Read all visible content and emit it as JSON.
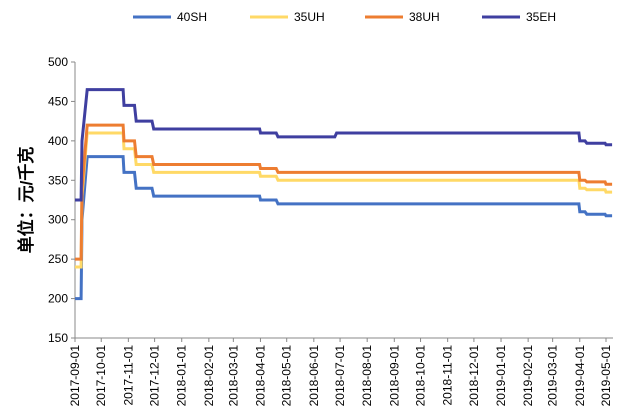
{
  "chart_data": {
    "type": "line",
    "ylabel": "单位：元/千克",
    "ylim": [
      150,
      500
    ],
    "yticks": [
      150,
      200,
      250,
      300,
      350,
      400,
      450,
      500
    ],
    "xticks": [
      "2017-09-01",
      "2017-10-01",
      "2017-11-01",
      "2017-12-01",
      "2018-01-01",
      "2018-02-01",
      "2018-03-01",
      "2018-04-01",
      "2018-05-01",
      "2018-06-01",
      "2018-07-01",
      "2018-08-01",
      "2018-09-01",
      "2018-10-01",
      "2018-11-01",
      "2018-12-01",
      "2019-01-01",
      "2019-02-01",
      "2019-03-01",
      "2019-04-01",
      "2019-05-01"
    ],
    "legend_position": "top",
    "series": [
      {
        "name": "40SH",
        "color": "#4472C4",
        "points": [
          [
            "2017-09-01",
            200
          ],
          [
            "2017-09-08",
            200
          ],
          [
            "2017-09-09",
            300
          ],
          [
            "2017-09-15",
            380
          ],
          [
            "2017-10-10",
            380
          ],
          [
            "2017-10-26",
            380
          ],
          [
            "2017-10-27",
            360
          ],
          [
            "2017-11-08",
            360
          ],
          [
            "2017-11-10",
            340
          ],
          [
            "2017-11-28",
            340
          ],
          [
            "2017-11-30",
            330
          ],
          [
            "2018-03-31",
            330
          ],
          [
            "2018-04-01",
            325
          ],
          [
            "2018-04-19",
            325
          ],
          [
            "2018-04-21",
            320
          ],
          [
            "2019-03-31",
            320
          ],
          [
            "2019-04-01",
            310
          ],
          [
            "2019-04-07",
            310
          ],
          [
            "2019-04-09",
            307
          ],
          [
            "2019-04-30",
            307
          ],
          [
            "2019-05-01",
            305
          ],
          [
            "2019-05-08",
            305
          ]
        ]
      },
      {
        "name": "35UH",
        "color": "#FFD966",
        "points": [
          [
            "2017-09-01",
            240
          ],
          [
            "2017-09-08",
            240
          ],
          [
            "2017-09-09",
            330
          ],
          [
            "2017-09-15",
            410
          ],
          [
            "2017-10-10",
            410
          ],
          [
            "2017-10-26",
            410
          ],
          [
            "2017-10-27",
            390
          ],
          [
            "2017-11-08",
            390
          ],
          [
            "2017-11-10",
            370
          ],
          [
            "2017-11-28",
            370
          ],
          [
            "2017-11-30",
            360
          ],
          [
            "2018-03-31",
            360
          ],
          [
            "2018-04-01",
            355
          ],
          [
            "2018-04-19",
            355
          ],
          [
            "2018-04-21",
            350
          ],
          [
            "2019-03-31",
            350
          ],
          [
            "2019-04-01",
            340
          ],
          [
            "2019-04-07",
            340
          ],
          [
            "2019-04-09",
            338
          ],
          [
            "2019-04-30",
            338
          ],
          [
            "2019-05-01",
            335
          ],
          [
            "2019-05-08",
            335
          ]
        ]
      },
      {
        "name": "38UH",
        "color": "#ED7D31",
        "points": [
          [
            "2017-09-01",
            250
          ],
          [
            "2017-09-08",
            250
          ],
          [
            "2017-09-09",
            340
          ],
          [
            "2017-09-15",
            420
          ],
          [
            "2017-10-10",
            420
          ],
          [
            "2017-10-26",
            420
          ],
          [
            "2017-10-27",
            400
          ],
          [
            "2017-11-08",
            400
          ],
          [
            "2017-11-10",
            380
          ],
          [
            "2017-11-28",
            380
          ],
          [
            "2017-11-30",
            370
          ],
          [
            "2018-03-31",
            370
          ],
          [
            "2018-04-01",
            365
          ],
          [
            "2018-04-19",
            365
          ],
          [
            "2018-04-21",
            360
          ],
          [
            "2019-03-31",
            360
          ],
          [
            "2019-04-01",
            350
          ],
          [
            "2019-04-07",
            350
          ],
          [
            "2019-04-09",
            348
          ],
          [
            "2019-04-30",
            348
          ],
          [
            "2019-05-01",
            345
          ],
          [
            "2019-05-08",
            345
          ]
        ]
      },
      {
        "name": "35EH",
        "color": "#3F3FA0",
        "points": [
          [
            "2017-09-01",
            325
          ],
          [
            "2017-09-08",
            325
          ],
          [
            "2017-09-09",
            400
          ],
          [
            "2017-09-15",
            465
          ],
          [
            "2017-10-10",
            465
          ],
          [
            "2017-10-26",
            465
          ],
          [
            "2017-10-27",
            445
          ],
          [
            "2017-11-08",
            445
          ],
          [
            "2017-11-10",
            425
          ],
          [
            "2017-11-28",
            425
          ],
          [
            "2017-11-30",
            415
          ],
          [
            "2018-03-31",
            415
          ],
          [
            "2018-04-01",
            410
          ],
          [
            "2018-04-19",
            410
          ],
          [
            "2018-04-21",
            405
          ],
          [
            "2018-06-25",
            405
          ],
          [
            "2018-06-27",
            410
          ],
          [
            "2019-03-31",
            410
          ],
          [
            "2019-04-01",
            400
          ],
          [
            "2019-04-07",
            400
          ],
          [
            "2019-04-09",
            397
          ],
          [
            "2019-04-30",
            397
          ],
          [
            "2019-05-01",
            395
          ],
          [
            "2019-05-08",
            395
          ]
        ]
      }
    ]
  }
}
